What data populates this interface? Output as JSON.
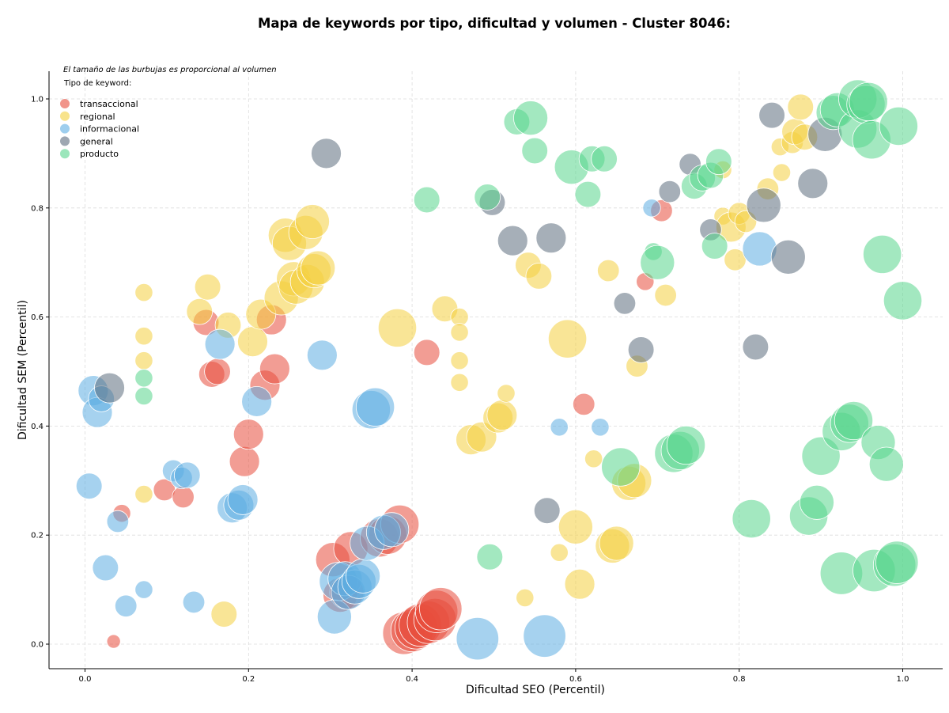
{
  "chart_data": {
    "type": "scatter",
    "title": "Mapa de keywords por tipo, dificultad y volumen - Cluster 8046:",
    "xlabel": "Dificultad SEO (Percentil)",
    "ylabel": "Dificultad SEM (Percentil)",
    "note": "El tamaño de las burbujas es proporcional al volumen",
    "legend_title": "Tipo de keyword:",
    "legend_position": "top-left",
    "xlim": [
      -0.045,
      1.05
    ],
    "ylim": [
      -0.045,
      1.05
    ],
    "xticks": [
      "0.0",
      "0.2",
      "0.4",
      "0.6",
      "0.8",
      "1.0"
    ],
    "yticks": [
      "0.0",
      "0.2",
      "0.4",
      "0.6",
      "0.8",
      "1.0"
    ],
    "grid": true,
    "series": [
      {
        "name": "transaccional",
        "color": "#e74c3c",
        "points": [
          [
            0.035,
            0.005,
            1
          ],
          [
            0.045,
            0.24,
            2
          ],
          [
            0.097,
            0.283,
            3
          ],
          [
            0.12,
            0.27,
            3
          ],
          [
            0.148,
            0.59,
            4
          ],
          [
            0.155,
            0.495,
            4
          ],
          [
            0.162,
            0.5,
            4
          ],
          [
            0.195,
            0.335,
            5
          ],
          [
            0.2,
            0.385,
            5
          ],
          [
            0.22,
            0.475,
            5
          ],
          [
            0.228,
            0.595,
            5
          ],
          [
            0.232,
            0.505,
            5
          ],
          [
            0.303,
            0.155,
            6
          ],
          [
            0.312,
            0.09,
            6
          ],
          [
            0.32,
            0.095,
            6
          ],
          [
            0.325,
            0.175,
            6
          ],
          [
            0.36,
            0.195,
            7
          ],
          [
            0.37,
            0.2,
            7
          ],
          [
            0.385,
            0.22,
            7
          ],
          [
            0.39,
            0.02,
            8
          ],
          [
            0.4,
            0.025,
            8
          ],
          [
            0.405,
            0.03,
            8
          ],
          [
            0.41,
            0.035,
            8
          ],
          [
            0.42,
            0.04,
            8
          ],
          [
            0.428,
            0.045,
            8
          ],
          [
            0.43,
            0.06,
            8
          ],
          [
            0.435,
            0.065,
            8
          ],
          [
            0.418,
            0.535,
            4
          ],
          [
            0.61,
            0.44,
            3
          ],
          [
            0.685,
            0.665,
            2
          ],
          [
            0.705,
            0.795,
            3
          ]
        ]
      },
      {
        "name": "regional",
        "color": "#f4d03f",
        "points": [
          [
            0.072,
            0.645,
            2
          ],
          [
            0.072,
            0.565,
            2
          ],
          [
            0.072,
            0.52,
            2
          ],
          [
            0.072,
            0.275,
            2
          ],
          [
            0.14,
            0.61,
            4
          ],
          [
            0.15,
            0.655,
            4
          ],
          [
            0.175,
            0.585,
            4
          ],
          [
            0.17,
            0.055,
            4
          ],
          [
            0.205,
            0.555,
            5
          ],
          [
            0.215,
            0.605,
            5
          ],
          [
            0.24,
            0.635,
            6
          ],
          [
            0.245,
            0.75,
            6
          ],
          [
            0.25,
            0.735,
            6
          ],
          [
            0.255,
            0.67,
            6
          ],
          [
            0.258,
            0.655,
            6
          ],
          [
            0.27,
            0.755,
            6
          ],
          [
            0.272,
            0.665,
            6
          ],
          [
            0.278,
            0.775,
            6
          ],
          [
            0.28,
            0.685,
            6
          ],
          [
            0.285,
            0.69,
            6
          ],
          [
            0.382,
            0.58,
            7
          ],
          [
            0.44,
            0.615,
            4
          ],
          [
            0.458,
            0.6,
            2
          ],
          [
            0.458,
            0.572,
            2
          ],
          [
            0.458,
            0.52,
            2
          ],
          [
            0.458,
            0.48,
            2
          ],
          [
            0.472,
            0.375,
            5
          ],
          [
            0.485,
            0.38,
            5
          ],
          [
            0.505,
            0.415,
            5
          ],
          [
            0.51,
            0.42,
            5
          ],
          [
            0.515,
            0.46,
            2
          ],
          [
            0.538,
            0.085,
            2
          ],
          [
            0.542,
            0.695,
            4
          ],
          [
            0.555,
            0.675,
            4
          ],
          [
            0.58,
            0.168,
            2
          ],
          [
            0.59,
            0.56,
            7
          ],
          [
            0.6,
            0.215,
            6
          ],
          [
            0.605,
            0.11,
            5
          ],
          [
            0.622,
            0.34,
            2
          ],
          [
            0.64,
            0.685,
            3
          ],
          [
            0.645,
            0.18,
            6
          ],
          [
            0.65,
            0.185,
            6
          ],
          [
            0.665,
            0.295,
            6
          ],
          [
            0.672,
            0.3,
            6
          ],
          [
            0.675,
            0.51,
            3
          ],
          [
            0.71,
            0.64,
            3
          ],
          [
            0.78,
            0.87,
            2
          ],
          [
            0.78,
            0.785,
            2
          ],
          [
            0.79,
            0.765,
            5
          ],
          [
            0.795,
            0.705,
            3
          ],
          [
            0.8,
            0.79,
            3
          ],
          [
            0.808,
            0.775,
            3
          ],
          [
            0.835,
            0.835,
            3
          ],
          [
            0.85,
            0.912,
            2
          ],
          [
            0.852,
            0.865,
            2
          ],
          [
            0.865,
            0.92,
            3
          ],
          [
            0.868,
            0.94,
            4
          ],
          [
            0.875,
            0.985,
            4
          ],
          [
            0.88,
            0.93,
            4
          ]
        ]
      },
      {
        "name": "informacional",
        "color": "#5dade2",
        "points": [
          [
            0.005,
            0.29,
            4
          ],
          [
            0.01,
            0.465,
            5
          ],
          [
            0.015,
            0.425,
            5
          ],
          [
            0.02,
            0.45,
            4
          ],
          [
            0.025,
            0.14,
            4
          ],
          [
            0.04,
            0.225,
            3
          ],
          [
            0.05,
            0.07,
            3
          ],
          [
            0.072,
            0.1,
            2
          ],
          [
            0.108,
            0.318,
            3
          ],
          [
            0.118,
            0.305,
            3
          ],
          [
            0.125,
            0.31,
            4
          ],
          [
            0.133,
            0.077,
            3
          ],
          [
            0.165,
            0.55,
            5
          ],
          [
            0.18,
            0.25,
            5
          ],
          [
            0.188,
            0.255,
            5
          ],
          [
            0.193,
            0.265,
            5
          ],
          [
            0.21,
            0.445,
            5
          ],
          [
            0.29,
            0.53,
            5
          ],
          [
            0.305,
            0.05,
            6
          ],
          [
            0.31,
            0.115,
            7
          ],
          [
            0.318,
            0.12,
            6
          ],
          [
            0.322,
            0.095,
            6
          ],
          [
            0.33,
            0.105,
            6
          ],
          [
            0.335,
            0.115,
            6
          ],
          [
            0.34,
            0.125,
            6
          ],
          [
            0.345,
            0.185,
            6
          ],
          [
            0.35,
            0.43,
            7
          ],
          [
            0.355,
            0.435,
            7
          ],
          [
            0.365,
            0.205,
            6
          ],
          [
            0.375,
            0.21,
            6
          ],
          [
            0.48,
            0.01,
            8
          ],
          [
            0.562,
            0.015,
            8
          ],
          [
            0.58,
            0.398,
            2
          ],
          [
            0.63,
            0.398,
            2
          ],
          [
            0.693,
            0.8,
            2
          ],
          [
            0.825,
            0.725,
            6
          ]
        ]
      },
      {
        "name": "general",
        "color": "#5d6d7e",
        "points": [
          [
            0.03,
            0.47,
            5
          ],
          [
            0.295,
            0.9,
            5
          ],
          [
            0.498,
            0.81,
            4
          ],
          [
            0.523,
            0.74,
            5
          ],
          [
            0.57,
            0.745,
            5
          ],
          [
            0.565,
            0.245,
            4
          ],
          [
            0.66,
            0.625,
            3
          ],
          [
            0.68,
            0.54,
            4
          ],
          [
            0.715,
            0.83,
            3
          ],
          [
            0.74,
            0.88,
            3
          ],
          [
            0.765,
            0.76,
            3
          ],
          [
            0.82,
            0.545,
            4
          ],
          [
            0.83,
            0.805,
            6
          ],
          [
            0.84,
            0.97,
            4
          ],
          [
            0.86,
            0.71,
            6
          ],
          [
            0.89,
            0.845,
            5
          ],
          [
            0.905,
            0.935,
            6
          ]
        ]
      },
      {
        "name": "producto",
        "color": "#58d68d",
        "points": [
          [
            0.072,
            0.488,
            2
          ],
          [
            0.072,
            0.455,
            2
          ],
          [
            0.418,
            0.815,
            4
          ],
          [
            0.492,
            0.82,
            4
          ],
          [
            0.495,
            0.16,
            4
          ],
          [
            0.528,
            0.958,
            4
          ],
          [
            0.545,
            0.965,
            6
          ],
          [
            0.55,
            0.905,
            4
          ],
          [
            0.595,
            0.875,
            6
          ],
          [
            0.615,
            0.825,
            4
          ],
          [
            0.62,
            0.89,
            4
          ],
          [
            0.635,
            0.89,
            4
          ],
          [
            0.655,
            0.325,
            7
          ],
          [
            0.695,
            0.72,
            2
          ],
          [
            0.7,
            0.7,
            6
          ],
          [
            0.72,
            0.35,
            7
          ],
          [
            0.728,
            0.355,
            7
          ],
          [
            0.735,
            0.365,
            7
          ],
          [
            0.745,
            0.84,
            4
          ],
          [
            0.755,
            0.855,
            4
          ],
          [
            0.765,
            0.86,
            4
          ],
          [
            0.77,
            0.73,
            4
          ],
          [
            0.775,
            0.885,
            4
          ],
          [
            0.815,
            0.23,
            7
          ],
          [
            0.885,
            0.235,
            7
          ],
          [
            0.895,
            0.26,
            6
          ],
          [
            0.9,
            0.345,
            7
          ],
          [
            0.915,
            0.975,
            6
          ],
          [
            0.92,
            0.98,
            6
          ],
          [
            0.925,
            0.13,
            8
          ],
          [
            0.925,
            0.39,
            7
          ],
          [
            0.935,
            0.405,
            7
          ],
          [
            0.94,
            0.41,
            7
          ],
          [
            0.945,
            0.945,
            7
          ],
          [
            0.945,
            1.0,
            7
          ],
          [
            0.955,
            0.99,
            7
          ],
          [
            0.958,
            0.995,
            7
          ],
          [
            0.962,
            0.925,
            7
          ],
          [
            0.965,
            0.135,
            8
          ],
          [
            0.97,
            0.37,
            6
          ],
          [
            0.975,
            0.715,
            7
          ],
          [
            0.98,
            0.33,
            6
          ],
          [
            0.99,
            0.145,
            8
          ],
          [
            0.993,
            0.15,
            8
          ],
          [
            0.995,
            0.95,
            7
          ],
          [
            1.0,
            0.63,
            7
          ]
        ]
      }
    ]
  }
}
